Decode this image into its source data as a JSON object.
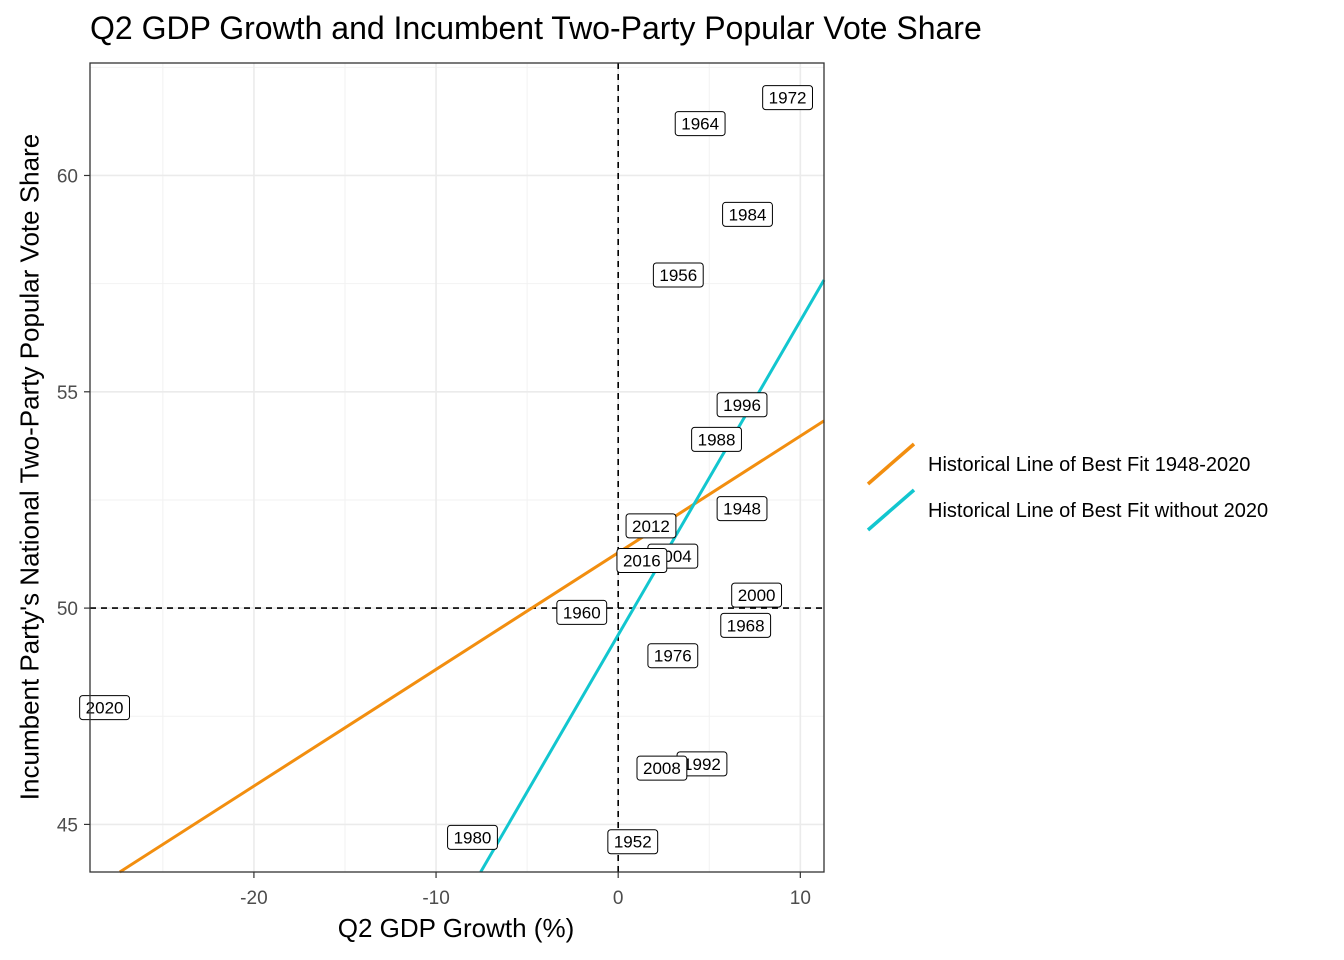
{
  "chart_data": {
    "type": "scatter",
    "title": "Q2 GDP Growth and Incumbent Two-Party Popular Vote Share",
    "xlabel": "Q2 GDP Growth (%)",
    "ylabel": "Incumbent Party's National Two-Party Popular Vote Share",
    "xlim": [
      -29.0,
      11.3
    ],
    "ylim": [
      43.9,
      62.6
    ],
    "x_ticks": [
      -20,
      -10,
      0,
      10
    ],
    "x_tick_labels": [
      "-20",
      "-10",
      "0",
      "10"
    ],
    "y_ticks": [
      45,
      50,
      55,
      60
    ],
    "y_tick_labels": [
      "45",
      "50",
      "55",
      "60"
    ],
    "grid": true,
    "reference_lines": {
      "x": 0,
      "y": 50,
      "style": "dashed"
    },
    "points": [
      {
        "label": "1948",
        "x": 6.8,
        "y": 52.3
      },
      {
        "label": "1952",
        "x": 0.8,
        "y": 44.6
      },
      {
        "label": "1956",
        "x": 3.3,
        "y": 57.7
      },
      {
        "label": "1960",
        "x": -2.0,
        "y": 49.9
      },
      {
        "label": "1964",
        "x": 4.5,
        "y": 61.2
      },
      {
        "label": "1968",
        "x": 7.0,
        "y": 49.6
      },
      {
        "label": "1972",
        "x": 9.3,
        "y": 61.8
      },
      {
        "label": "1976",
        "x": 3.0,
        "y": 48.9
      },
      {
        "label": "1980",
        "x": -8.0,
        "y": 44.7
      },
      {
        "label": "1984",
        "x": 7.1,
        "y": 59.1
      },
      {
        "label": "1988",
        "x": 5.4,
        "y": 53.9
      },
      {
        "label": "1992",
        "x": 4.6,
        "y": 46.4
      },
      {
        "label": "1996",
        "x": 6.8,
        "y": 54.7
      },
      {
        "label": "2000",
        "x": 7.6,
        "y": 50.3
      },
      {
        "label": "2004",
        "x": 3.0,
        "y": 51.2
      },
      {
        "label": "2008",
        "x": 2.4,
        "y": 46.3
      },
      {
        "label": "2012",
        "x": 1.8,
        "y": 51.9
      },
      {
        "label": "2016",
        "x": 1.3,
        "y": 51.1
      },
      {
        "label": "2020",
        "x": -28.2,
        "y": 47.7
      }
    ],
    "series": [
      {
        "name": "Historical Line of Best Fit 1948-2020",
        "color": "#F28E0F",
        "intercept": 51.28,
        "slope": 0.2697
      },
      {
        "name": "Historical Line of Best Fit without 2020",
        "color": "#12C6CF",
        "intercept": 49.38,
        "slope": 0.7259
      }
    ],
    "legend_position": "right"
  }
}
